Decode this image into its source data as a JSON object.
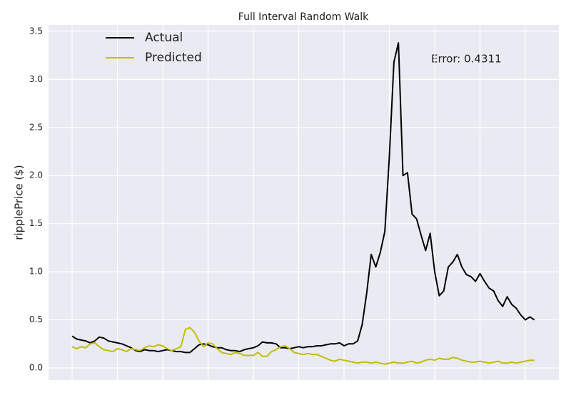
{
  "chart_data": {
    "type": "line",
    "title": "Full Interval Random Walk",
    "ylabel": "ripplePrice ($)",
    "annotation": "Error: 0.4311",
    "x": [
      0,
      5,
      10,
      15,
      20,
      25,
      30,
      35,
      40,
      45,
      50,
      55,
      60,
      65,
      70,
      75,
      80,
      85,
      90,
      95,
      100,
      105,
      110,
      115,
      120,
      125,
      130,
      135,
      140,
      145,
      150,
      155,
      160,
      165,
      170,
      175,
      180,
      185,
      190,
      195,
      200,
      205,
      210,
      215,
      220,
      225,
      230,
      235,
      240,
      245,
      250,
      255,
      260,
      265,
      270,
      275,
      280,
      285,
      290,
      295,
      300,
      305,
      310,
      315,
      320,
      325,
      330,
      335,
      340,
      345,
      350,
      355,
      360,
      365,
      370,
      375,
      380,
      385,
      390,
      395,
      400,
      405,
      410,
      415,
      420,
      425,
      430,
      435,
      440,
      445,
      450,
      455,
      460,
      465,
      470,
      475,
      480,
      485,
      490,
      495,
      500,
      505,
      510
    ],
    "series": [
      {
        "name": "Actual",
        "color": "#000000",
        "values": [
          0.33,
          0.3,
          0.29,
          0.28,
          0.26,
          0.28,
          0.32,
          0.31,
          0.28,
          0.27,
          0.26,
          0.25,
          0.23,
          0.21,
          0.18,
          0.17,
          0.19,
          0.18,
          0.18,
          0.17,
          0.18,
          0.19,
          0.18,
          0.17,
          0.17,
          0.16,
          0.16,
          0.2,
          0.24,
          0.25,
          0.24,
          0.22,
          0.21,
          0.21,
          0.19,
          0.18,
          0.18,
          0.17,
          0.19,
          0.2,
          0.21,
          0.23,
          0.27,
          0.26,
          0.26,
          0.25,
          0.21,
          0.21,
          0.2,
          0.21,
          0.22,
          0.21,
          0.22,
          0.22,
          0.23,
          0.23,
          0.24,
          0.25,
          0.25,
          0.26,
          0.23,
          0.25,
          0.25,
          0.28,
          0.45,
          0.78,
          1.18,
          1.05,
          1.2,
          1.42,
          2.2,
          3.18,
          3.38,
          2.0,
          2.03,
          1.6,
          1.55,
          1.38,
          1.22,
          1.4,
          1.0,
          0.75,
          0.8,
          1.05,
          1.1,
          1.18,
          1.05,
          0.97,
          0.95,
          0.9,
          0.98,
          0.9,
          0.83,
          0.8,
          0.7,
          0.64,
          0.74,
          0.66,
          0.62,
          0.55,
          0.5,
          0.53,
          0.5
        ]
      },
      {
        "name": "Predicted",
        "color": "#bfbf00",
        "values": [
          0.22,
          0.2,
          0.22,
          0.21,
          0.25,
          0.26,
          0.22,
          0.19,
          0.18,
          0.17,
          0.2,
          0.19,
          0.17,
          0.2,
          0.19,
          0.18,
          0.21,
          0.23,
          0.22,
          0.24,
          0.23,
          0.2,
          0.18,
          0.2,
          0.22,
          0.4,
          0.42,
          0.37,
          0.28,
          0.22,
          0.26,
          0.25,
          0.2,
          0.16,
          0.15,
          0.14,
          0.16,
          0.15,
          0.13,
          0.13,
          0.13,
          0.16,
          0.12,
          0.12,
          0.17,
          0.19,
          0.22,
          0.23,
          0.2,
          0.16,
          0.15,
          0.14,
          0.15,
          0.14,
          0.14,
          0.12,
          0.1,
          0.08,
          0.07,
          0.09,
          0.08,
          0.07,
          0.06,
          0.05,
          0.06,
          0.06,
          0.05,
          0.06,
          0.05,
          0.04,
          0.05,
          0.06,
          0.05,
          0.05,
          0.06,
          0.07,
          0.05,
          0.06,
          0.08,
          0.09,
          0.08,
          0.1,
          0.09,
          0.09,
          0.11,
          0.1,
          0.08,
          0.07,
          0.06,
          0.06,
          0.07,
          0.06,
          0.05,
          0.06,
          0.07,
          0.05,
          0.05,
          0.06,
          0.05,
          0.06,
          0.07,
          0.08,
          0.08
        ]
      }
    ],
    "xlim": [
      -26,
      537
    ],
    "xticks": [
      0,
      50,
      100,
      150,
      200,
      250,
      300,
      350,
      400,
      450,
      500
    ],
    "ylim": [
      -0.126,
      3.566
    ],
    "yticks": [
      {
        "value": 0,
        "label": "0.0"
      },
      0.5,
      {
        "value": 1,
        "label": "1.0"
      },
      1.5,
      {
        "value": 2,
        "label": "2.0"
      },
      2.5,
      {
        "value": 3,
        "label": "3.0"
      },
      3.5
    ],
    "grid": true,
    "legend": "upper left"
  }
}
